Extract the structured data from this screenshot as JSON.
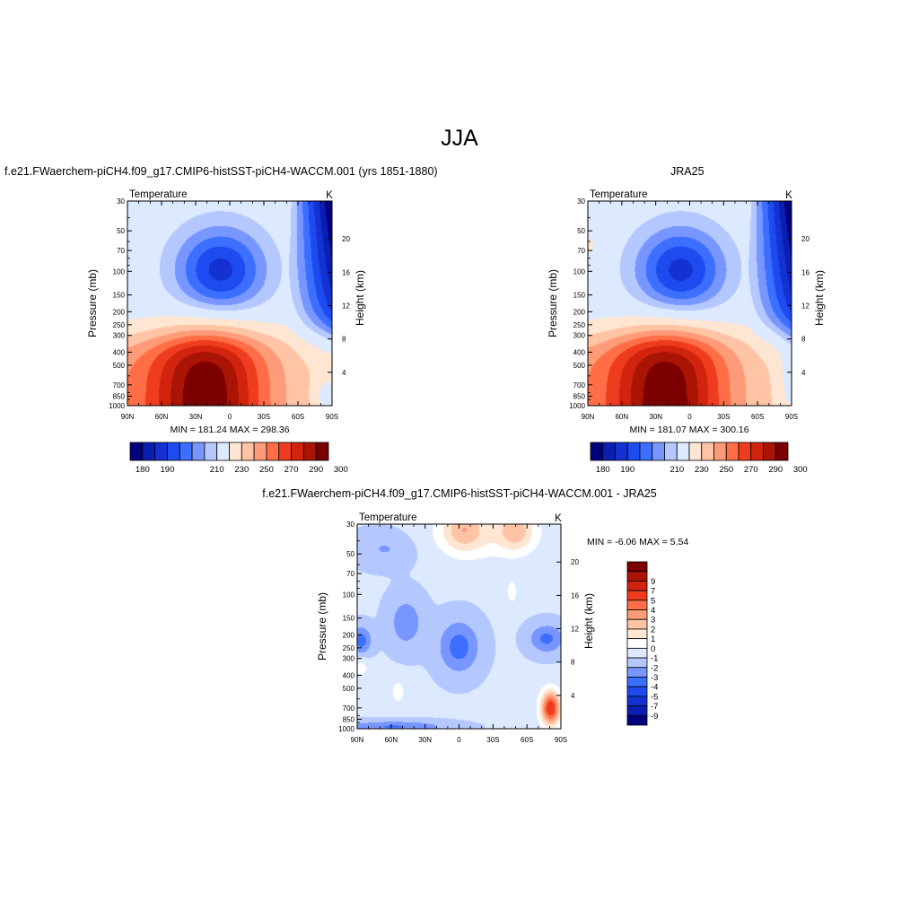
{
  "page": {
    "title": "JJA",
    "left_panel_title": "f.e21.FWaerchem-piCH4.f09_g17.CMIP6-histSST-piCH4-WACCM.001 (yrs 1851-1880)",
    "right_panel_title": "JRA25",
    "bottom_panel_title": "f.e21.FWaerchem-piCH4.f09_g17.CMIP6-histSST-piCH4-WACCM.001 - JRA25"
  },
  "colors": {
    "abs_palette": [
      "#00007f",
      "#0a1eb2",
      "#1432d2",
      "#1e4bf0",
      "#3c6eff",
      "#7896ff",
      "#b4c8ff",
      "#dce9ff",
      "#ffe6d2",
      "#ffc3a5",
      "#ff9b78",
      "#ff6e46",
      "#f03c1e",
      "#d2230f",
      "#aa1405",
      "#7d0000"
    ],
    "diff_palette": [
      "#00007f",
      "#0a1eb2",
      "#1432d2",
      "#1e4bf0",
      "#3c6eff",
      "#7896ff",
      "#b4c8ff",
      "#dce9ff",
      "#ffffff",
      "#ffe6d2",
      "#ffc3a5",
      "#ff9b78",
      "#ff6e46",
      "#f03c1e",
      "#d2230f",
      "#aa1405",
      "#7d0000"
    ]
  },
  "chart_data": [
    {
      "type": "heatmap",
      "name": "model",
      "subtitle": "Temperature",
      "units": "K",
      "xlabel": "",
      "ylabel": "Pressure (mb)",
      "y2label": "Height (km)",
      "x_ticks": [
        "90N",
        "60N",
        "30N",
        "0",
        "30S",
        "60S",
        "90S"
      ],
      "x_values": [
        90,
        60,
        30,
        0,
        -30,
        -60,
        -90
      ],
      "y_ticks": [
        30,
        50,
        70,
        100,
        150,
        200,
        250,
        300,
        400,
        500,
        700,
        850,
        1000
      ],
      "y_scale": "log",
      "ylim": [
        1000,
        30
      ],
      "height_ticks": [
        4,
        8,
        12,
        16,
        20
      ],
      "min_max": "MIN = 181.24  MAX = 298.36",
      "contour_levels": [
        180,
        185,
        190,
        195,
        200,
        205,
        210,
        220,
        230,
        240,
        250,
        260,
        270,
        280,
        290,
        295,
        300
      ],
      "colorbar_labels": [
        180,
        190,
        210,
        230,
        250,
        270,
        290,
        300
      ],
      "min": 181.24,
      "max": 298.36
    },
    {
      "type": "heatmap",
      "name": "JRA25",
      "subtitle": "Temperature",
      "units": "K",
      "xlabel": "",
      "ylabel": "Pressure (mb)",
      "y2label": "Height (km)",
      "x_ticks": [
        "90N",
        "60N",
        "30N",
        "0",
        "30S",
        "60S",
        "90S"
      ],
      "x_values": [
        90,
        60,
        30,
        0,
        -30,
        -60,
        -90
      ],
      "y_ticks": [
        30,
        50,
        70,
        100,
        150,
        200,
        250,
        300,
        400,
        500,
        700,
        850,
        1000
      ],
      "y_scale": "log",
      "ylim": [
        1000,
        30
      ],
      "height_ticks": [
        4,
        8,
        12,
        16,
        20
      ],
      "min_max": "MIN = 181.07  MAX = 300.16",
      "contour_levels": [
        180,
        185,
        190,
        195,
        200,
        205,
        210,
        220,
        230,
        240,
        250,
        260,
        270,
        280,
        290,
        295,
        300
      ],
      "colorbar_labels": [
        180,
        190,
        210,
        230,
        250,
        270,
        290,
        300
      ],
      "min": 181.07,
      "max": 300.16
    },
    {
      "type": "heatmap",
      "name": "difference",
      "subtitle": "Temperature",
      "units": "K",
      "xlabel": "",
      "ylabel": "Pressure (mb)",
      "y2label": "Height (km)",
      "x_ticks": [
        "90N",
        "60N",
        "30N",
        "0",
        "30S",
        "60S",
        "90S"
      ],
      "x_values": [
        90,
        60,
        30,
        0,
        -30,
        -60,
        -90
      ],
      "y_ticks": [
        30,
        50,
        70,
        100,
        150,
        200,
        250,
        300,
        400,
        500,
        700,
        850,
        1000
      ],
      "y_scale": "log",
      "ylim": [
        1000,
        30
      ],
      "height_ticks": [
        4,
        8,
        12,
        16,
        20
      ],
      "min_max": "MIN =  -6.06  MAX =   5.54",
      "contour_levels": [
        -9,
        -7,
        -5,
        -4,
        -3,
        -2,
        -1,
        0,
        1,
        2,
        3,
        4,
        5,
        7,
        9
      ],
      "colorbar_labels": [
        9,
        7,
        5,
        4,
        3,
        2,
        1,
        0,
        -1,
        -2,
        -3,
        -4,
        -5,
        -7,
        -9
      ],
      "min": -6.06,
      "max": 5.54
    }
  ]
}
